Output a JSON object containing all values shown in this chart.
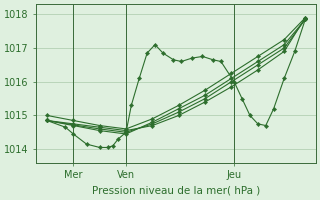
{
  "xlabel": "Pression niveau de la mer( hPa )",
  "bg_color": "#dff0df",
  "line_color": "#2d6e2d",
  "grid_color": "#aacaaa",
  "ylim": [
    1013.6,
    1018.3
  ],
  "ytick_positions": [
    1014,
    1015,
    1016,
    1017,
    1018
  ],
  "marker": "D",
  "markersize": 2.2,
  "day_lines": [
    0.12,
    0.32,
    0.73
  ],
  "day_labels": [
    "Mer",
    "Ven",
    "Jeu"
  ],
  "lines": [
    {
      "pts_x": [
        0.02,
        0.12,
        0.22,
        0.32,
        0.42,
        0.52,
        0.62,
        0.72,
        0.82,
        0.92,
        1.0
      ],
      "pts_y": [
        1014.85,
        1014.75,
        1014.65,
        1014.55,
        1014.7,
        1015.0,
        1015.4,
        1015.85,
        1016.35,
        1016.9,
        1017.9
      ]
    },
    {
      "pts_x": [
        0.02,
        0.12,
        0.22,
        0.32,
        0.42,
        0.52,
        0.62,
        0.72,
        0.82,
        0.92,
        1.0
      ],
      "pts_y": [
        1014.85,
        1014.72,
        1014.6,
        1014.5,
        1014.75,
        1015.1,
        1015.5,
        1016.0,
        1016.5,
        1017.0,
        1017.85
      ]
    },
    {
      "pts_x": [
        0.02,
        0.12,
        0.22,
        0.32,
        0.42,
        0.52,
        0.62,
        0.72,
        0.82,
        0.92,
        1.0
      ],
      "pts_y": [
        1014.85,
        1014.7,
        1014.55,
        1014.45,
        1014.8,
        1015.2,
        1015.6,
        1016.1,
        1016.6,
        1017.1,
        1017.85
      ]
    },
    {
      "pts_x": [
        0.02,
        0.12,
        0.22,
        0.32,
        0.42,
        0.52,
        0.62,
        0.72,
        0.82,
        0.92,
        1.0
      ],
      "pts_y": [
        1015.0,
        1014.85,
        1014.7,
        1014.6,
        1014.9,
        1015.3,
        1015.75,
        1016.25,
        1016.75,
        1017.25,
        1017.9
      ]
    },
    {
      "pts_x": [
        0.02,
        0.09,
        0.12,
        0.17,
        0.22,
        0.25,
        0.27,
        0.29,
        0.32,
        0.34,
        0.37,
        0.4,
        0.43,
        0.46,
        0.5,
        0.53,
        0.57,
        0.61,
        0.65,
        0.68,
        0.73,
        0.76,
        0.79,
        0.82,
        0.85,
        0.88,
        0.92,
        0.96,
        1.0
      ],
      "pts_y": [
        1014.85,
        1014.65,
        1014.45,
        1014.15,
        1014.05,
        1014.05,
        1014.1,
        1014.3,
        1014.5,
        1015.3,
        1016.1,
        1016.85,
        1017.1,
        1016.85,
        1016.65,
        1016.6,
        1016.7,
        1016.75,
        1016.65,
        1016.6,
        1016.0,
        1015.5,
        1015.0,
        1014.75,
        1014.7,
        1015.2,
        1016.1,
        1016.9,
        1017.85
      ]
    }
  ]
}
